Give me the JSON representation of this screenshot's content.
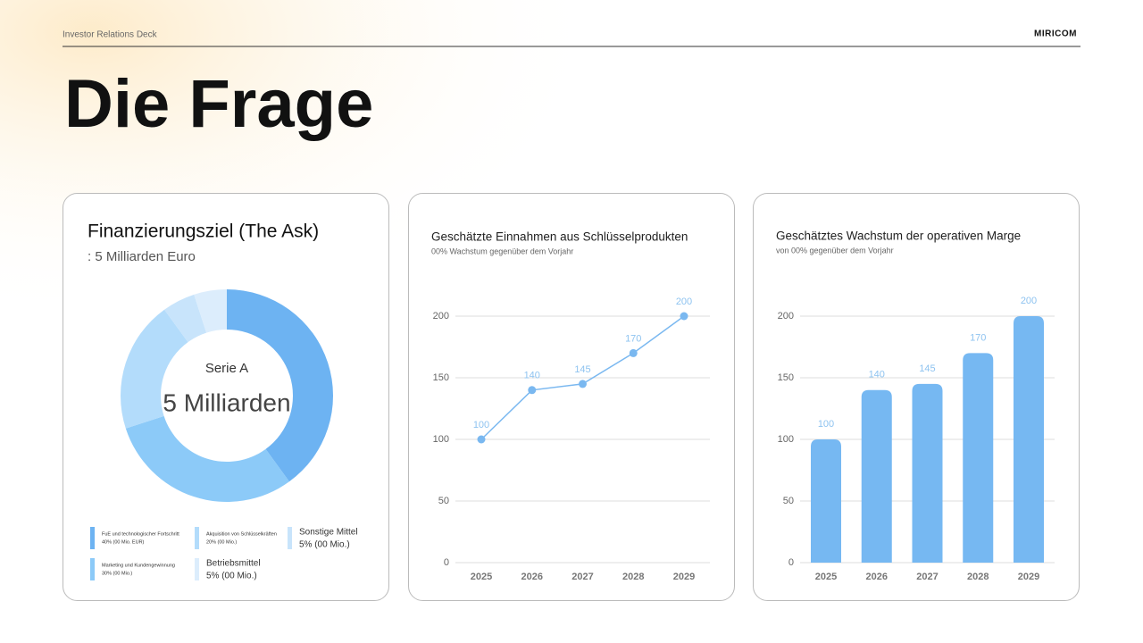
{
  "header": {
    "deck": "Investor Relations Deck",
    "brand": "MIRICOM"
  },
  "title": "Die Frage",
  "chart_data": [
    {
      "type": "pie",
      "title": "Finanzierungsziel (The Ask)",
      "subtitle": ": 5 Milliarden Euro",
      "center_label": "Serie A",
      "center_value": "5 Milliarden",
      "categories": [
        "FuE und technologischer Fortschritt",
        "Marketing und Kundengewinnung",
        "Akquisition von Schlüsselkräften",
        "Sonstige Mittel",
        "Betriebsmittel"
      ],
      "values": [
        40,
        30,
        20,
        5,
        5
      ],
      "value_labels": [
        "40% (00 Mio. EUR)",
        "30% (00 Mio.)",
        "20% (00 Mio.)",
        "5% (00 Mio.)",
        "5% (00 Mio.)"
      ],
      "colors": [
        "#6db3f2",
        "#8ccaf8",
        "#b3dcfb",
        "#c8e4fb",
        "#dcedfc"
      ]
    },
    {
      "type": "line",
      "title": "Geschätzte Einnahmen aus Schlüsselprodukten",
      "subtitle": "00% Wachstum gegenüber dem Vorjahr",
      "categories": [
        "2025",
        "2026",
        "2027",
        "2028",
        "2029"
      ],
      "values": [
        100,
        140,
        145,
        170,
        200
      ],
      "color": "#7ab8f0",
      "ylim": [
        0,
        200
      ],
      "yticks": [
        0,
        50,
        100,
        150,
        200
      ],
      "grid": true
    },
    {
      "type": "bar",
      "title": "Geschätztes Wachstum der operativen Marge",
      "subtitle": "von 00% gegenüber dem Vorjahr",
      "categories": [
        "2025",
        "2026",
        "2027",
        "2028",
        "2029"
      ],
      "values": [
        100,
        140,
        145,
        170,
        200
      ],
      "color": "#76b8f2",
      "ylim": [
        0,
        200
      ],
      "yticks": [
        0,
        50,
        100,
        150,
        200
      ],
      "grid": true
    }
  ]
}
